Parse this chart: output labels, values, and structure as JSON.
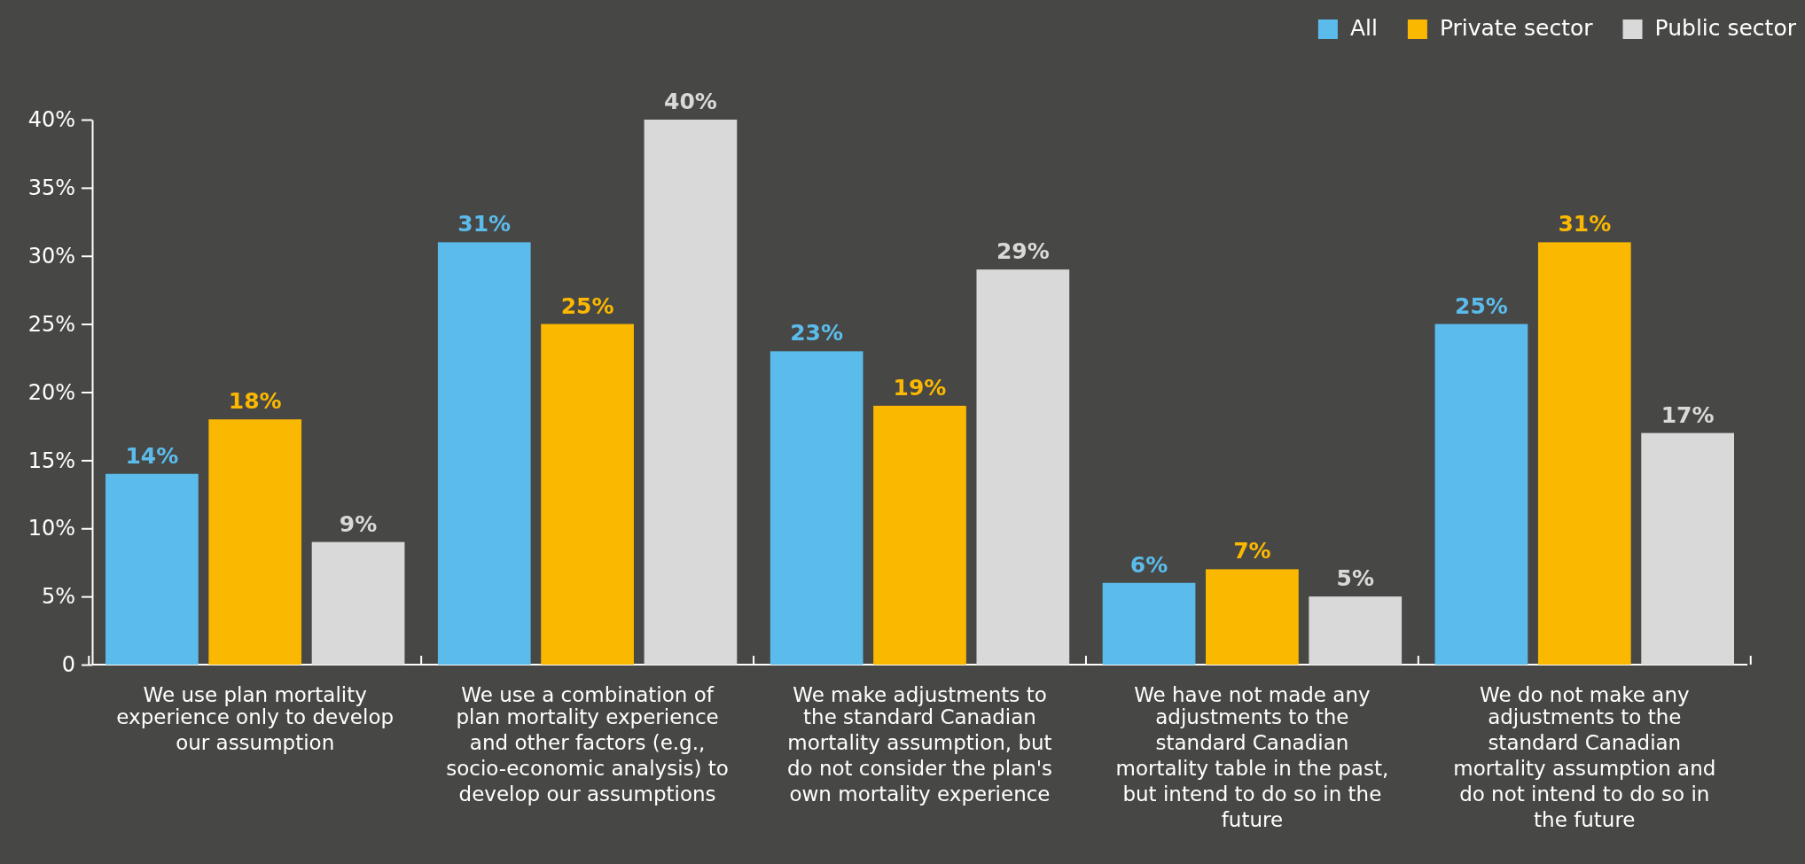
{
  "chart_data": {
    "type": "bar",
    "categories": [
      "We use plan mortality experience only to develop our assumption",
      "We use a combination of plan mortality experience and other factors (e.g., socio-economic analysis) to develop our assumptions",
      "We make adjustments to the standard Canadian mortality assumption, but do not consider the plan's own mortality experience",
      "We have not made any adjustments to the standard Canadian mortality table in the past, but intend to do so in the future",
      "We do not make any adjustments to the standard Canadian mortality assumption and do not intend to do so in the future"
    ],
    "series": [
      {
        "name": "All",
        "color": "#5bbcec",
        "values": [
          14,
          31,
          23,
          6,
          25
        ]
      },
      {
        "name": "Private sector",
        "color": "#fbb800",
        "values": [
          18,
          25,
          19,
          7,
          31
        ]
      },
      {
        "name": "Public sector",
        "color": "#d9d9d9",
        "values": [
          9,
          40,
          29,
          5,
          17
        ]
      }
    ],
    "ylim": [
      0,
      40
    ],
    "yticks": [
      0,
      {
        "value": 5,
        "label": "5%"
      },
      {
        "value": 10,
        "label": "10%"
      },
      {
        "value": 15,
        "label": "15%"
      },
      {
        "value": 20,
        "label": "20%"
      },
      {
        "value": 25,
        "label": "25%"
      },
      {
        "value": 30,
        "label": "30%"
      },
      {
        "value": 35,
        "label": "35%"
      },
      {
        "value": 40,
        "label": "40%"
      }
    ],
    "value_labels": [
      [
        "14%",
        "31%",
        "23%",
        "6%",
        "25%"
      ],
      [
        "18%",
        "25%",
        "19%",
        "7%",
        "31%"
      ],
      [
        "9%",
        "40%",
        "29%",
        "5%",
        "17%"
      ]
    ],
    "grid": false,
    "legend": "top right"
  }
}
